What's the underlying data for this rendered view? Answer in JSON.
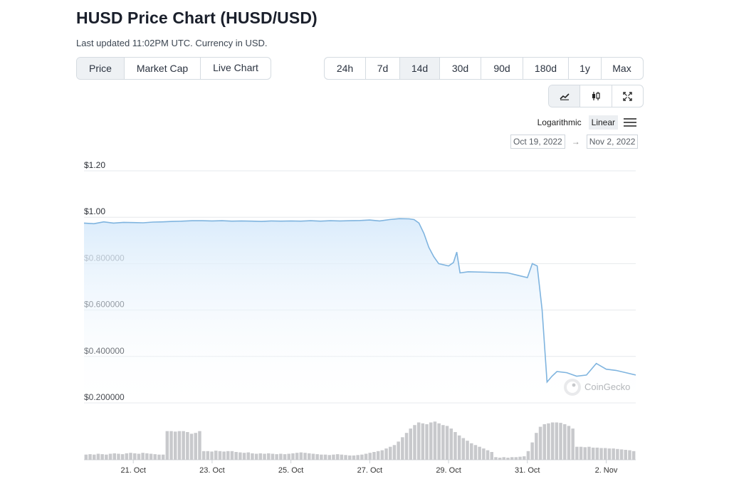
{
  "header": {
    "title": "HUSD Price Chart (HUSD/USD)",
    "subtitle": "Last updated 11:02PM UTC. Currency in USD."
  },
  "tabs": [
    {
      "label": "Price",
      "active": true
    },
    {
      "label": "Market Cap",
      "active": false
    },
    {
      "label": "Live Chart",
      "active": false
    }
  ],
  "ranges": [
    {
      "label": "24h",
      "active": false
    },
    {
      "label": "7d",
      "active": false
    },
    {
      "label": "14d",
      "active": true
    },
    {
      "label": "30d",
      "active": false
    },
    {
      "label": "90d",
      "active": false
    },
    {
      "label": "180d",
      "active": false
    },
    {
      "label": "1y",
      "active": false
    },
    {
      "label": "Max",
      "active": false
    }
  ],
  "tools": [
    {
      "icon": "line-chart-icon",
      "active": true
    },
    {
      "icon": "candlestick-icon",
      "active": false
    },
    {
      "icon": "fullscreen-icon",
      "active": false
    }
  ],
  "scale": {
    "logarithmic_label": "Logarithmic",
    "linear_label": "Linear",
    "selected": "Linear",
    "menu_icon": "hamburger-menu-icon"
  },
  "date_range": {
    "from": "Oct 19, 2022",
    "arrow": "→",
    "to": "Nov 2, 2022"
  },
  "watermark": {
    "text": "CoinGecko",
    "icon": "gecko-logo-icon"
  },
  "colors": {
    "line": "#7fb4df",
    "area_top": "#d9ebfb",
    "volume": "#c8c9cc",
    "grid": "#e6e9ec"
  },
  "chart_data": {
    "type": "area",
    "title": "",
    "xlabel": "",
    "ylabel": "",
    "y_scale": "linear",
    "ylim": [
      0.2,
      1.2
    ],
    "grid": true,
    "x_domain": [
      "2022-10-19T18:00",
      "2022-11-02T18:00"
    ],
    "y_ticks": [
      {
        "value": 1.2,
        "label": "$1.20"
      },
      {
        "value": 1.0,
        "label": "$1.00"
      },
      {
        "value": 0.8,
        "label": "$0.800000"
      },
      {
        "value": 0.6,
        "label": "$0.600000"
      },
      {
        "value": 0.4,
        "label": "$0.400000"
      },
      {
        "value": 0.2,
        "label": "$0.200000"
      }
    ],
    "x_ticks": [
      {
        "date": "2022-10-21",
        "label": "21. Oct"
      },
      {
        "date": "2022-10-23",
        "label": "23. Oct"
      },
      {
        "date": "2022-10-25",
        "label": "25. Oct"
      },
      {
        "date": "2022-10-27",
        "label": "27. Oct"
      },
      {
        "date": "2022-10-29",
        "label": "29. Oct"
      },
      {
        "date": "2022-10-31",
        "label": "31. Oct"
      },
      {
        "date": "2022-11-02",
        "label": "2. Nov"
      }
    ],
    "series": [
      {
        "points": [
          [
            "2022-10-19T18:00",
            0.975
          ],
          [
            "2022-10-20T00:00",
            0.972
          ],
          [
            "2022-10-20T06:00",
            0.98
          ],
          [
            "2022-10-20T12:00",
            0.975
          ],
          [
            "2022-10-20T18:00",
            0.978
          ],
          [
            "2022-10-21T00:00",
            0.977
          ],
          [
            "2022-10-21T06:00",
            0.976
          ],
          [
            "2022-10-21T12:00",
            0.979
          ],
          [
            "2022-10-21T18:00",
            0.98
          ],
          [
            "2022-10-22T00:00",
            0.982
          ],
          [
            "2022-10-22T06:00",
            0.983
          ],
          [
            "2022-10-22T12:00",
            0.985
          ],
          [
            "2022-10-22T18:00",
            0.985
          ],
          [
            "2022-10-23T00:00",
            0.984
          ],
          [
            "2022-10-23T06:00",
            0.985
          ],
          [
            "2022-10-23T12:00",
            0.983
          ],
          [
            "2022-10-23T18:00",
            0.984
          ],
          [
            "2022-10-24T00:00",
            0.983
          ],
          [
            "2022-10-24T06:00",
            0.982
          ],
          [
            "2022-10-24T12:00",
            0.984
          ],
          [
            "2022-10-24T18:00",
            0.983
          ],
          [
            "2022-10-25T00:00",
            0.984
          ],
          [
            "2022-10-25T06:00",
            0.983
          ],
          [
            "2022-10-25T12:00",
            0.985
          ],
          [
            "2022-10-25T18:00",
            0.983
          ],
          [
            "2022-10-26T00:00",
            0.985
          ],
          [
            "2022-10-26T06:00",
            0.984
          ],
          [
            "2022-10-26T12:00",
            0.985
          ],
          [
            "2022-10-26T18:00",
            0.986
          ],
          [
            "2022-10-27T00:00",
            0.988
          ],
          [
            "2022-10-27T06:00",
            0.984
          ],
          [
            "2022-10-27T12:00",
            0.99
          ],
          [
            "2022-10-27T18:00",
            0.994
          ],
          [
            "2022-10-28T00:00",
            0.993
          ],
          [
            "2022-10-28T03:00",
            0.99
          ],
          [
            "2022-10-28T06:00",
            0.975
          ],
          [
            "2022-10-28T09:00",
            0.93
          ],
          [
            "2022-10-28T12:00",
            0.87
          ],
          [
            "2022-10-28T15:00",
            0.83
          ],
          [
            "2022-10-28T18:00",
            0.8
          ],
          [
            "2022-10-29T00:00",
            0.79
          ],
          [
            "2022-10-29T03:00",
            0.805
          ],
          [
            "2022-10-29T05:00",
            0.85
          ],
          [
            "2022-10-29T07:00",
            0.76
          ],
          [
            "2022-10-29T12:00",
            0.765
          ],
          [
            "2022-10-30T00:00",
            0.763
          ],
          [
            "2022-10-30T12:00",
            0.76
          ],
          [
            "2022-10-30T18:00",
            0.75
          ],
          [
            "2022-10-31T00:00",
            0.74
          ],
          [
            "2022-10-31T03:00",
            0.8
          ],
          [
            "2022-10-31T06:00",
            0.79
          ],
          [
            "2022-10-31T09:00",
            0.6
          ],
          [
            "2022-10-31T12:00",
            0.29
          ],
          [
            "2022-10-31T15:00",
            0.315
          ],
          [
            "2022-10-31T18:00",
            0.335
          ],
          [
            "2022-11-01T00:00",
            0.33
          ],
          [
            "2022-11-01T06:00",
            0.315
          ],
          [
            "2022-11-01T12:00",
            0.32
          ],
          [
            "2022-11-01T18:00",
            0.37
          ],
          [
            "2022-11-02T00:00",
            0.345
          ],
          [
            "2022-11-02T06:00",
            0.34
          ],
          [
            "2022-11-02T12:00",
            0.33
          ],
          [
            "2022-11-02T18:00",
            0.32
          ]
        ]
      }
    ],
    "volume": {
      "note_level": "relative volume 0-1",
      "values": [
        0.12,
        0.13,
        0.12,
        0.14,
        0.13,
        0.12,
        0.14,
        0.15,
        0.14,
        0.13,
        0.15,
        0.16,
        0.15,
        0.14,
        0.16,
        0.15,
        0.14,
        0.13,
        0.12,
        0.12,
        0.66,
        0.66,
        0.65,
        0.66,
        0.66,
        0.64,
        0.6,
        0.62,
        0.66,
        0.2,
        0.2,
        0.19,
        0.21,
        0.2,
        0.19,
        0.2,
        0.2,
        0.18,
        0.17,
        0.16,
        0.17,
        0.15,
        0.14,
        0.15,
        0.14,
        0.15,
        0.14,
        0.13,
        0.14,
        0.13,
        0.14,
        0.15,
        0.16,
        0.17,
        0.16,
        0.15,
        0.14,
        0.13,
        0.12,
        0.12,
        0.11,
        0.12,
        0.13,
        0.12,
        0.11,
        0.1,
        0.1,
        0.11,
        0.12,
        0.14,
        0.16,
        0.18,
        0.2,
        0.22,
        0.26,
        0.3,
        0.34,
        0.42,
        0.52,
        0.62,
        0.72,
        0.8,
        0.86,
        0.84,
        0.82,
        0.86,
        0.88,
        0.84,
        0.8,
        0.78,
        0.72,
        0.64,
        0.56,
        0.5,
        0.44,
        0.38,
        0.34,
        0.3,
        0.26,
        0.22,
        0.18,
        0.06,
        0.05,
        0.06,
        0.05,
        0.06,
        0.06,
        0.07,
        0.08,
        0.2,
        0.4,
        0.62,
        0.76,
        0.82,
        0.84,
        0.86,
        0.86,
        0.85,
        0.82,
        0.78,
        0.72,
        0.3,
        0.3,
        0.29,
        0.3,
        0.28,
        0.28,
        0.27,
        0.27,
        0.26,
        0.26,
        0.25,
        0.24,
        0.23,
        0.22,
        0.2
      ]
    }
  }
}
